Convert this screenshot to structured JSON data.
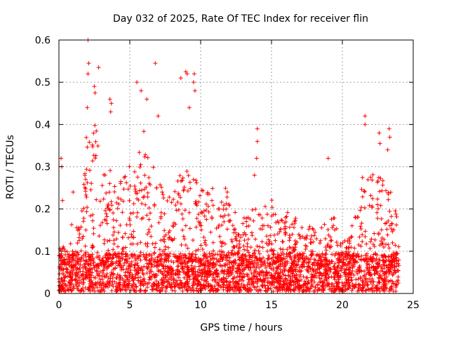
{
  "chart_data": {
    "type": "scatter",
    "title": "Day 032 of 2025, Rate Of TEC Index for receiver flin",
    "xlabel": "GPS time / hours",
    "ylabel": "ROTI / TECUs",
    "xlim": [
      0,
      25
    ],
    "ylim": [
      0,
      0.6
    ],
    "xticks": [
      0,
      5,
      10,
      15,
      20,
      25
    ],
    "yticks": [
      0,
      0.1,
      0.2,
      0.3,
      0.4,
      0.5,
      0.6
    ],
    "grid": true,
    "marker": "+",
    "marker_color": "#ff0000",
    "data_range_x": [
      0,
      24
    ],
    "envelope": [
      {
        "x": 0.0,
        "y": 0.14
      },
      {
        "x": 0.5,
        "y": 0.12
      },
      {
        "x": 1.0,
        "y": 0.17
      },
      {
        "x": 1.5,
        "y": 0.16
      },
      {
        "x": 2.0,
        "y": 0.4
      },
      {
        "x": 2.5,
        "y": 0.4
      },
      {
        "x": 3.0,
        "y": 0.33
      },
      {
        "x": 3.5,
        "y": 0.3
      },
      {
        "x": 4.0,
        "y": 0.26
      },
      {
        "x": 4.5,
        "y": 0.28
      },
      {
        "x": 5.0,
        "y": 0.3
      },
      {
        "x": 5.5,
        "y": 0.33
      },
      {
        "x": 6.0,
        "y": 0.38
      },
      {
        "x": 6.5,
        "y": 0.32
      },
      {
        "x": 7.0,
        "y": 0.28
      },
      {
        "x": 7.5,
        "y": 0.22
      },
      {
        "x": 8.0,
        "y": 0.24
      },
      {
        "x": 8.5,
        "y": 0.28
      },
      {
        "x": 9.0,
        "y": 0.32
      },
      {
        "x": 9.5,
        "y": 0.28
      },
      {
        "x": 10.0,
        "y": 0.25
      },
      {
        "x": 10.5,
        "y": 0.24
      },
      {
        "x": 11.0,
        "y": 0.25
      },
      {
        "x": 11.5,
        "y": 0.23
      },
      {
        "x": 12.0,
        "y": 0.26
      },
      {
        "x": 12.5,
        "y": 0.19
      },
      {
        "x": 13.0,
        "y": 0.18
      },
      {
        "x": 13.5,
        "y": 0.19
      },
      {
        "x": 14.0,
        "y": 0.2
      },
      {
        "x": 14.5,
        "y": 0.2
      },
      {
        "x": 15.0,
        "y": 0.22
      },
      {
        "x": 15.5,
        "y": 0.17
      },
      {
        "x": 16.0,
        "y": 0.19
      },
      {
        "x": 16.5,
        "y": 0.19
      },
      {
        "x": 17.0,
        "y": 0.15
      },
      {
        "x": 17.5,
        "y": 0.16
      },
      {
        "x": 18.0,
        "y": 0.15
      },
      {
        "x": 18.5,
        "y": 0.17
      },
      {
        "x": 19.0,
        "y": 0.17
      },
      {
        "x": 19.5,
        "y": 0.18
      },
      {
        "x": 20.0,
        "y": 0.12
      },
      {
        "x": 20.5,
        "y": 0.13
      },
      {
        "x": 21.0,
        "y": 0.22
      },
      {
        "x": 21.5,
        "y": 0.28
      },
      {
        "x": 22.0,
        "y": 0.27
      },
      {
        "x": 22.5,
        "y": 0.3
      },
      {
        "x": 23.0,
        "y": 0.25
      },
      {
        "x": 23.5,
        "y": 0.24
      },
      {
        "x": 24.0,
        "y": 0.15
      }
    ],
    "peaks": [
      {
        "x": 2.05,
        "y": 0.6
      },
      {
        "x": 2.1,
        "y": 0.545
      },
      {
        "x": 2.05,
        "y": 0.52
      },
      {
        "x": 2.5,
        "y": 0.49
      },
      {
        "x": 2.8,
        "y": 0.535
      },
      {
        "x": 2.55,
        "y": 0.475
      },
      {
        "x": 3.6,
        "y": 0.46
      },
      {
        "x": 3.7,
        "y": 0.45
      },
      {
        "x": 3.65,
        "y": 0.43
      },
      {
        "x": 2.0,
        "y": 0.44
      },
      {
        "x": 5.5,
        "y": 0.5
      },
      {
        "x": 5.8,
        "y": 0.48
      },
      {
        "x": 6.2,
        "y": 0.46
      },
      {
        "x": 6.8,
        "y": 0.545
      },
      {
        "x": 7.0,
        "y": 0.42
      },
      {
        "x": 8.6,
        "y": 0.51
      },
      {
        "x": 8.95,
        "y": 0.525
      },
      {
        "x": 9.05,
        "y": 0.52
      },
      {
        "x": 9.55,
        "y": 0.52
      },
      {
        "x": 9.6,
        "y": 0.48
      },
      {
        "x": 9.5,
        "y": 0.5
      },
      {
        "x": 9.2,
        "y": 0.44
      },
      {
        "x": 14.0,
        "y": 0.39
      },
      {
        "x": 14.0,
        "y": 0.36
      },
      {
        "x": 13.95,
        "y": 0.32
      },
      {
        "x": 13.8,
        "y": 0.28
      },
      {
        "x": 19.0,
        "y": 0.32
      },
      {
        "x": 21.6,
        "y": 0.42
      },
      {
        "x": 21.6,
        "y": 0.4
      },
      {
        "x": 22.6,
        "y": 0.38
      },
      {
        "x": 22.65,
        "y": 0.355
      },
      {
        "x": 23.3,
        "y": 0.39
      },
      {
        "x": 23.35,
        "y": 0.37
      },
      {
        "x": 23.2,
        "y": 0.34
      },
      {
        "x": 1.0,
        "y": 0.24
      },
      {
        "x": 0.15,
        "y": 0.32
      },
      {
        "x": 0.2,
        "y": 0.3
      },
      {
        "x": 0.25,
        "y": 0.22
      }
    ]
  }
}
